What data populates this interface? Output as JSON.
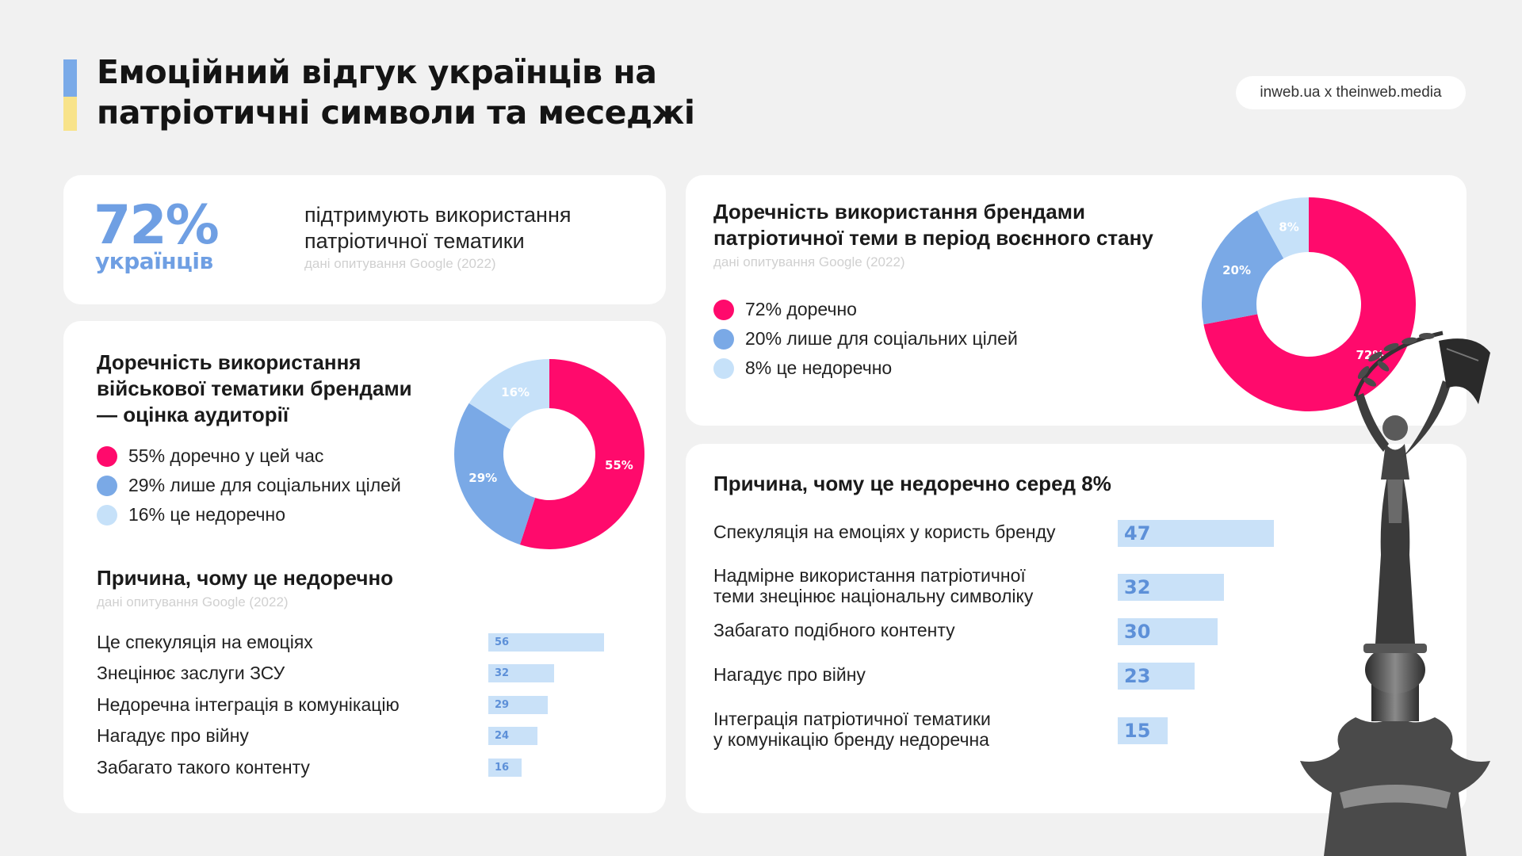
{
  "header": {
    "title_line1": "Емоційний відгук українців на",
    "title_line2": "патріотичні символи та меседжі",
    "source": "inweb.ua x theinweb.media"
  },
  "colors": {
    "pink": "#ff0a6c",
    "blue": "#7aa9e6",
    "light_blue": "#c6e1f9",
    "bar": "#c9e1f8",
    "flag_blue": "#7aaae8",
    "flag_yellow": "#f8e38a"
  },
  "stat_card": {
    "percent": "72%",
    "subject": "українців",
    "text_line1": "підтримують використання",
    "text_line2": "патріотичної тематики",
    "source": "дані опитування Google (2022)"
  },
  "military_card": {
    "title_line1": "Доречність використання",
    "title_line2": "військової тематики брендами",
    "title_line3": "— оцінка аудиторії",
    "reasons_title": "Причина, чому це недоречно",
    "reasons_source": "дані опитування Google (2022)"
  },
  "appropriate_card": {
    "title_line1": "Доречність використання брендами",
    "title_line2": "патріотичної теми в період воєнного стану",
    "source": "дані опитування Google (2022)"
  },
  "reason8_card": {
    "title": "Причина, чому це недоречно серед 8%"
  },
  "chart_data": [
    {
      "type": "pie",
      "categories": [
        "55% доречно у цей час",
        "29% лише для соціальних цілей",
        "16% це недоречно"
      ],
      "values": [
        55,
        29,
        16
      ],
      "labels": [
        "55%",
        "29%",
        "16%"
      ],
      "colors": [
        "#ff0a6c",
        "#7aa9e6",
        "#c6e1f9"
      ],
      "donut": true,
      "title": "Доречність використання військової тематики брендами — оцінка аудиторії"
    },
    {
      "type": "bar",
      "orientation": "horizontal",
      "title": "Причина, чому це недоречно",
      "categories": [
        "Це спекуляція на емоціях",
        "Знецінює заслуги ЗСУ",
        "Недоречна інтеграція в комунікацію",
        "Нагадує про війну",
        "Забагато такого контенту"
      ],
      "values": [
        56,
        32,
        29,
        24,
        16
      ]
    },
    {
      "type": "pie",
      "categories": [
        "72% доречно",
        "20% лише для соціальних цілей",
        "8% це недоречно"
      ],
      "values": [
        72,
        20,
        8
      ],
      "labels": [
        "72%",
        "20%",
        "8%"
      ],
      "colors": [
        "#ff0a6c",
        "#7aa9e6",
        "#c6e1f9"
      ],
      "donut": true,
      "title": "Доречність використання брендами патріотичної теми в період воєнного стану"
    },
    {
      "type": "bar",
      "orientation": "horizontal",
      "title": "Причина, чому це недоречно серед 8%",
      "categories": [
        [
          "Спекуляція на емоціях у користь бренду"
        ],
        [
          "Надмірне використання патріотичної",
          "теми знецінює національну символіку"
        ],
        [
          "Забагато подібного контенту"
        ],
        [
          "Нагадує про війну"
        ],
        [
          "Інтеграція патріотичної тематики",
          "у комунікацію бренду недоречна"
        ]
      ],
      "values": [
        47,
        32,
        30,
        23,
        15
      ]
    }
  ]
}
